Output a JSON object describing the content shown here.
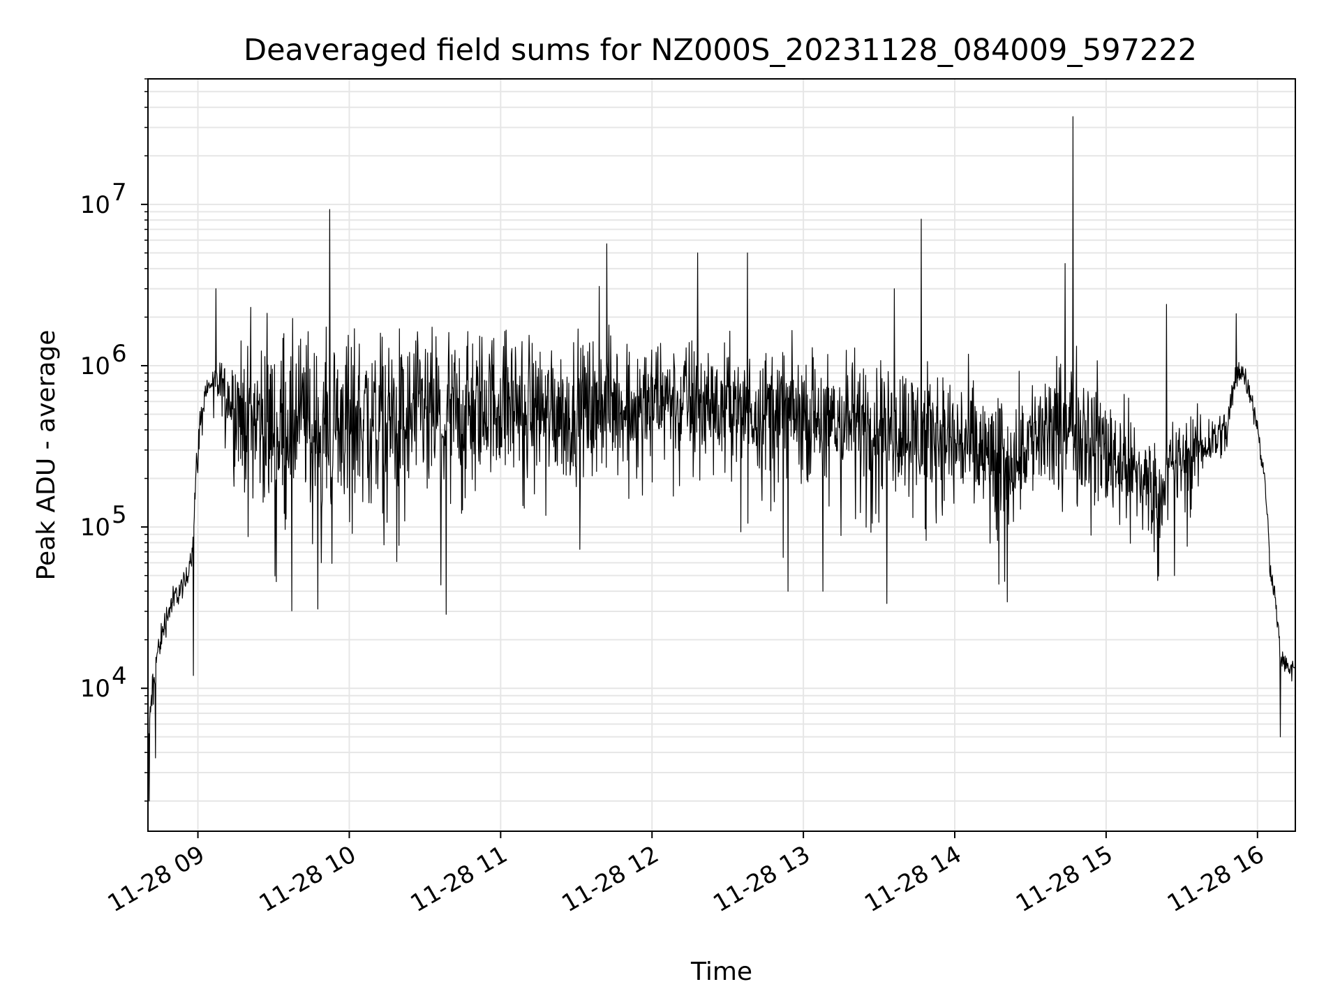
{
  "chart_data": {
    "type": "line",
    "title": "Deaveraged field sums for NZ000S_20231128_084009_597222",
    "xlabel": "Time",
    "ylabel": "Peak ADU - average",
    "x_ticks": [
      "11-28 09",
      "11-28 10",
      "11-28 11",
      "11-28 12",
      "11-28 13",
      "11-28 14",
      "11-28 15",
      "11-28 16"
    ],
    "x_tick_hours": [
      9,
      10,
      11,
      12,
      13,
      14,
      15,
      16
    ],
    "xlim_hours": [
      8.67,
      16.25
    ],
    "y_scale": "log",
    "ylim": [
      1300,
      60000000
    ],
    "y_ticks": [
      {
        "value": 10000,
        "base": "10",
        "exp": "4"
      },
      {
        "value": 100000,
        "base": "10",
        "exp": "5"
      },
      {
        "value": 1000000,
        "base": "10",
        "exp": "6"
      },
      {
        "value": 10000000,
        "base": "10",
        "exp": "7"
      }
    ],
    "grid": true,
    "line_color": "#000000",
    "grid_color": "#e6e6e6",
    "series": [
      {
        "name": "",
        "envelope_hours": [
          8.67,
          8.72,
          8.78,
          8.85,
          8.92,
          8.97,
          9.0,
          9.05,
          9.1,
          9.2,
          9.3,
          9.5,
          10.0,
          10.5,
          11.0,
          11.5,
          12.0,
          12.5,
          13.0,
          13.5,
          14.0,
          14.3,
          14.5,
          14.8,
          15.0,
          15.3,
          15.6,
          15.7,
          15.8,
          15.88,
          15.95,
          16.02,
          16.08,
          16.15,
          16.25
        ],
        "envelope_center": [
          4000,
          14000,
          25000,
          38000,
          45000,
          80000,
          300000,
          700000,
          800000,
          700000,
          500000,
          450000,
          500000,
          500000,
          600000,
          550000,
          650000,
          600000,
          500000,
          450000,
          350000,
          250000,
          350000,
          450000,
          300000,
          180000,
          300000,
          350000,
          400000,
          1000000,
          700000,
          300000,
          60000,
          15000,
          13000
        ],
        "envelope_spread_decades": [
          0.2,
          0.15,
          0.15,
          0.12,
          0.12,
          0.12,
          0.2,
          0.1,
          0.1,
          0.35,
          0.6,
          0.8,
          0.8,
          0.7,
          0.65,
          0.6,
          0.55,
          0.55,
          0.55,
          0.6,
          0.6,
          0.6,
          0.55,
          0.6,
          0.6,
          0.45,
          0.35,
          0.25,
          0.2,
          0.15,
          0.1,
          0.08,
          0.1,
          0.1,
          0.08
        ],
        "spikes": [
          {
            "hour": 8.68,
            "value": 2000
          },
          {
            "hour": 8.72,
            "value": 3700
          },
          {
            "hour": 8.97,
            "value": 12000
          },
          {
            "hour": 9.12,
            "value": 3000000
          },
          {
            "hour": 9.35,
            "value": 2300000
          },
          {
            "hour": 9.87,
            "value": 9300000
          },
          {
            "hour": 11.65,
            "value": 3100000
          },
          {
            "hour": 11.7,
            "value": 5700000
          },
          {
            "hour": 12.3,
            "value": 5000000
          },
          {
            "hour": 12.63,
            "value": 5000000
          },
          {
            "hour": 12.9,
            "value": 40000
          },
          {
            "hour": 13.13,
            "value": 40000
          },
          {
            "hour": 13.6,
            "value": 3000000
          },
          {
            "hour": 13.78,
            "value": 8100000
          },
          {
            "hour": 14.33,
            "value": 46000
          },
          {
            "hour": 14.73,
            "value": 4300000
          },
          {
            "hour": 14.78,
            "value": 35000000
          },
          {
            "hour": 15.4,
            "value": 2400000
          },
          {
            "hour": 15.45,
            "value": 50000
          },
          {
            "hour": 15.86,
            "value": 2100000
          },
          {
            "hour": 16.15,
            "value": 5000
          }
        ]
      }
    ]
  }
}
